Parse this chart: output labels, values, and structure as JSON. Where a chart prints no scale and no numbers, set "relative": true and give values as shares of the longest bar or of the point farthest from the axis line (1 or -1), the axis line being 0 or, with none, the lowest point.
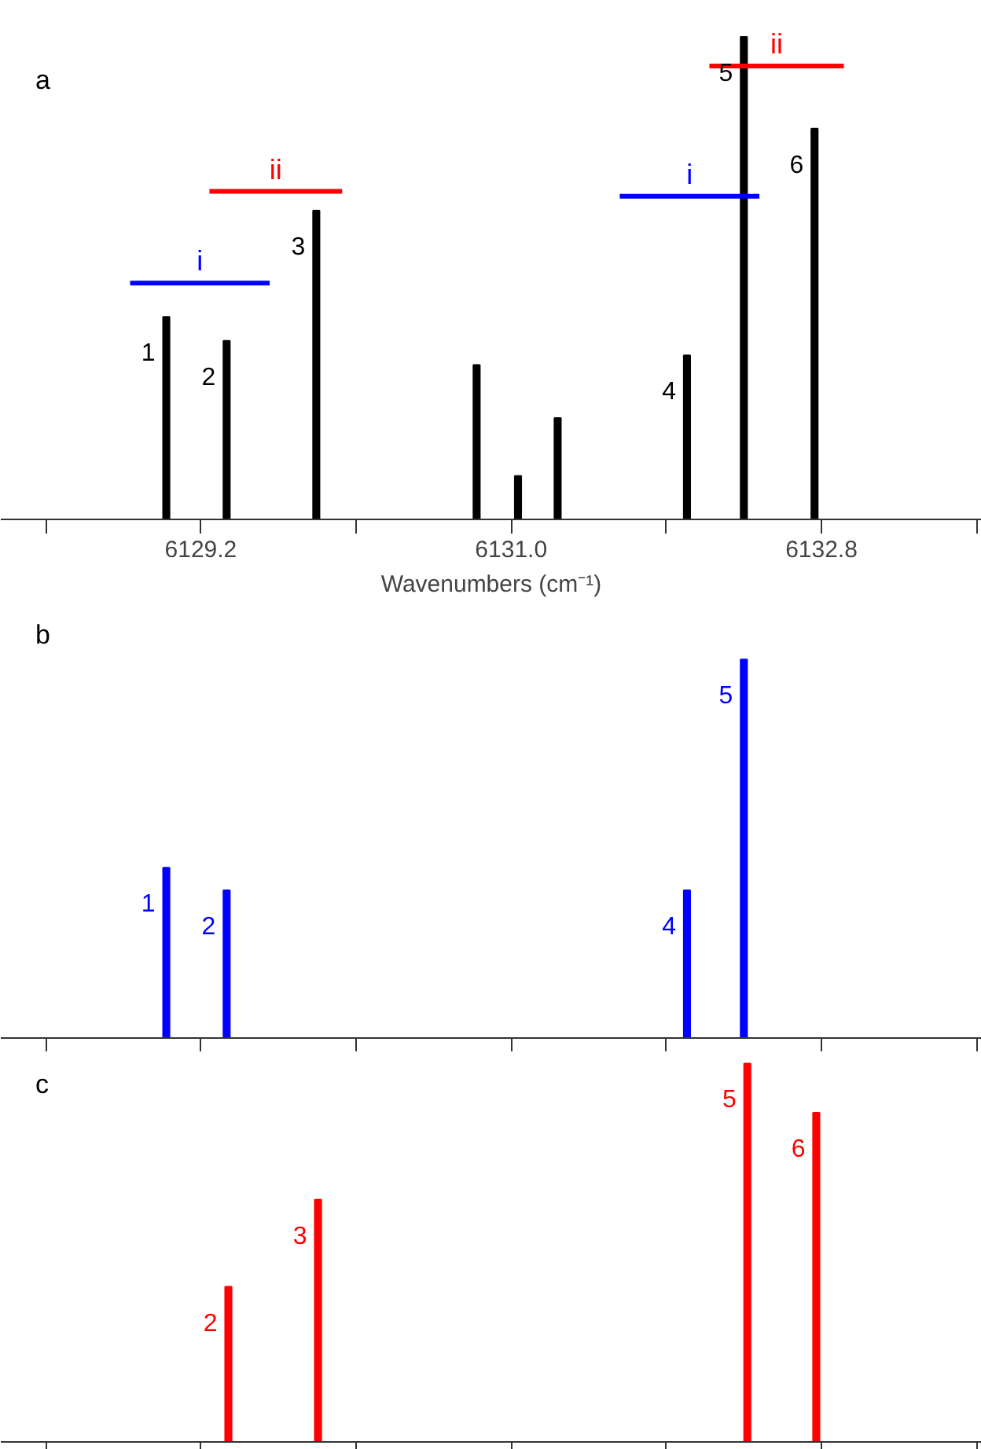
{
  "chart_data": [
    {
      "type": "bar",
      "title": "a",
      "relative": true,
      "xlabel": "Wavenumbers (cm⁻¹)",
      "xlim": [
        6128.04,
        6133.73
      ],
      "xticks": [
        {
          "value": 6128.3,
          "label": null
        },
        {
          "value": 6129.2,
          "label": "6129.2"
        },
        {
          "value": 6130.1,
          "label": null
        },
        {
          "value": 6131.0,
          "label": "6131.0"
        },
        {
          "value": 6131.9,
          "label": null
        },
        {
          "value": 6132.8,
          "label": "6132.8"
        },
        {
          "value": 6133.7,
          "label": null
        }
      ],
      "tick_labels": "x",
      "grid": false,
      "series": [
        {
          "color": "#000000",
          "x": [
            6129.0,
            6129.35,
            6129.87,
            6130.8,
            6131.04,
            6131.27,
            6132.02,
            6132.35,
            6132.76
          ],
          "values": [
            0.42,
            0.37,
            0.64,
            0.32,
            0.09,
            0.21,
            0.34,
            1,
            0.81
          ]
        },
        {
          "type": "line",
          "name": "i",
          "color": "#0000ff",
          "x": [
            6128.79,
            6129.6
          ],
          "values": [
            0.49,
            0.49
          ]
        },
        {
          "type": "line",
          "name": "ii",
          "color": "#ff0000",
          "x": [
            6129.25,
            6130.02
          ],
          "values": [
            0.68,
            0.68
          ]
        },
        {
          "type": "line",
          "name": "i",
          "color": "#0000ff",
          "x": [
            6131.63,
            6132.44
          ],
          "values": [
            0.67,
            0.67
          ]
        },
        {
          "type": "line",
          "name": "ii",
          "color": "#ff0000",
          "x": [
            6132.15,
            6132.93
          ],
          "values": [
            0.94,
            0.94
          ]
        }
      ],
      "annotations": [
        {
          "text": "1",
          "x": 6129.0,
          "y": 0.42
        },
        {
          "text": "2",
          "x": 6129.35,
          "y": 0.37
        },
        {
          "text": "3",
          "x": 6129.87,
          "y": 0.64
        },
        {
          "text": "4",
          "x": 6132.02,
          "y": 0.34
        },
        {
          "text": "5",
          "x": 6132.35,
          "y": 1
        },
        {
          "text": "6",
          "x": 6132.76,
          "y": 0.81
        }
      ]
    },
    {
      "type": "bar",
      "title": "b",
      "relative": true,
      "xlim": [
        6128.04,
        6133.73
      ],
      "xticks": [
        {
          "value": 6128.3,
          "label": null
        },
        {
          "value": 6129.2,
          "label": null
        },
        {
          "value": 6130.1,
          "label": null
        },
        {
          "value": 6131.0,
          "label": null
        },
        {
          "value": 6131.9,
          "label": null
        },
        {
          "value": 6132.8,
          "label": null
        },
        {
          "value": 6133.7,
          "label": null
        }
      ],
      "tick_labels": false,
      "grid": false,
      "series": [
        {
          "color": "#0000ff",
          "x": [
            6129.0,
            6129.35,
            6132.02,
            6132.35
          ],
          "values": [
            0.45,
            0.39,
            0.39,
            1
          ]
        }
      ],
      "annotations": [
        {
          "text": "1",
          "x": 6129.0,
          "y": 0.45
        },
        {
          "text": "2",
          "x": 6129.35,
          "y": 0.39
        },
        {
          "text": "4",
          "x": 6132.02,
          "y": 0.39
        },
        {
          "text": "5",
          "x": 6132.35,
          "y": 1
        }
      ]
    },
    {
      "type": "bar",
      "title": "c",
      "relative": true,
      "xlim": [
        6128.04,
        6133.73
      ],
      "xticks": [
        {
          "value": 6128.3,
          "label": null
        },
        {
          "value": 6129.2,
          "label": null
        },
        {
          "value": 6130.1,
          "label": null
        },
        {
          "value": 6131.0,
          "label": null
        },
        {
          "value": 6131.9,
          "label": null
        },
        {
          "value": 6132.8,
          "label": null
        },
        {
          "value": 6133.7,
          "label": null
        }
      ],
      "tick_labels": false,
      "grid": false,
      "series": [
        {
          "color": "#ff0000",
          "x": [
            6129.36,
            6129.88,
            6132.37,
            6132.77
          ],
          "values": [
            0.41,
            0.64,
            1,
            0.87
          ]
        }
      ],
      "annotations": [
        {
          "text": "2",
          "x": 6129.36,
          "y": 0.41
        },
        {
          "text": "3",
          "x": 6129.88,
          "y": 0.64
        },
        {
          "text": "5",
          "x": 6132.37,
          "y": 1
        },
        {
          "text": "6",
          "x": 6132.77,
          "y": 0.87
        }
      ]
    }
  ]
}
